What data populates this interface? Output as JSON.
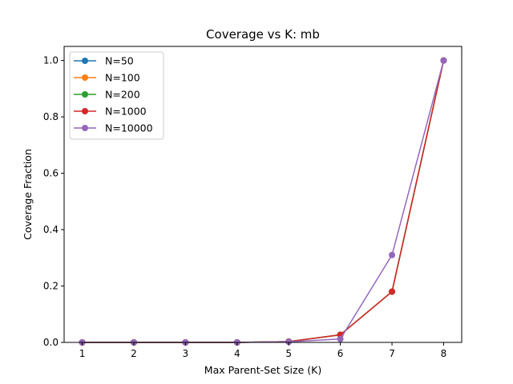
{
  "chart_data": {
    "type": "line",
    "title": "Coverage vs K: mb",
    "xlabel": "Max Parent-Set Size (K)",
    "ylabel": "Coverage Fraction",
    "x": [
      1,
      2,
      3,
      4,
      5,
      6,
      7,
      8
    ],
    "xlim": [
      0.65,
      8.35
    ],
    "ylim": [
      0,
      1.05
    ],
    "xticks": [
      "1",
      "2",
      "3",
      "4",
      "5",
      "6",
      "7",
      "8"
    ],
    "yticks": [
      "0.0",
      "0.2",
      "0.4",
      "0.6",
      "0.8",
      "1.0"
    ],
    "grid": false,
    "legend_position": "top-left",
    "series": [
      {
        "name": "N=50",
        "color": "#1f77b4",
        "values": [
          0,
          0,
          0,
          0,
          0.003,
          0.027,
          0.18,
          1.0
        ]
      },
      {
        "name": "N=100",
        "color": "#ff7f0e",
        "values": [
          0,
          0,
          0,
          0,
          0.003,
          0.027,
          0.18,
          1.0
        ]
      },
      {
        "name": "N=200",
        "color": "#2ca02c",
        "values": [
          0,
          0,
          0,
          0,
          0.003,
          0.027,
          0.18,
          1.0
        ]
      },
      {
        "name": "N=1000",
        "color": "#d62728",
        "values": [
          0,
          0,
          0,
          0,
          0.003,
          0.027,
          0.18,
          1.0
        ]
      },
      {
        "name": "N=10000",
        "color": "#9467bd",
        "values": [
          0,
          0,
          0,
          0,
          0.002,
          0.012,
          0.31,
          1.0
        ]
      }
    ]
  }
}
